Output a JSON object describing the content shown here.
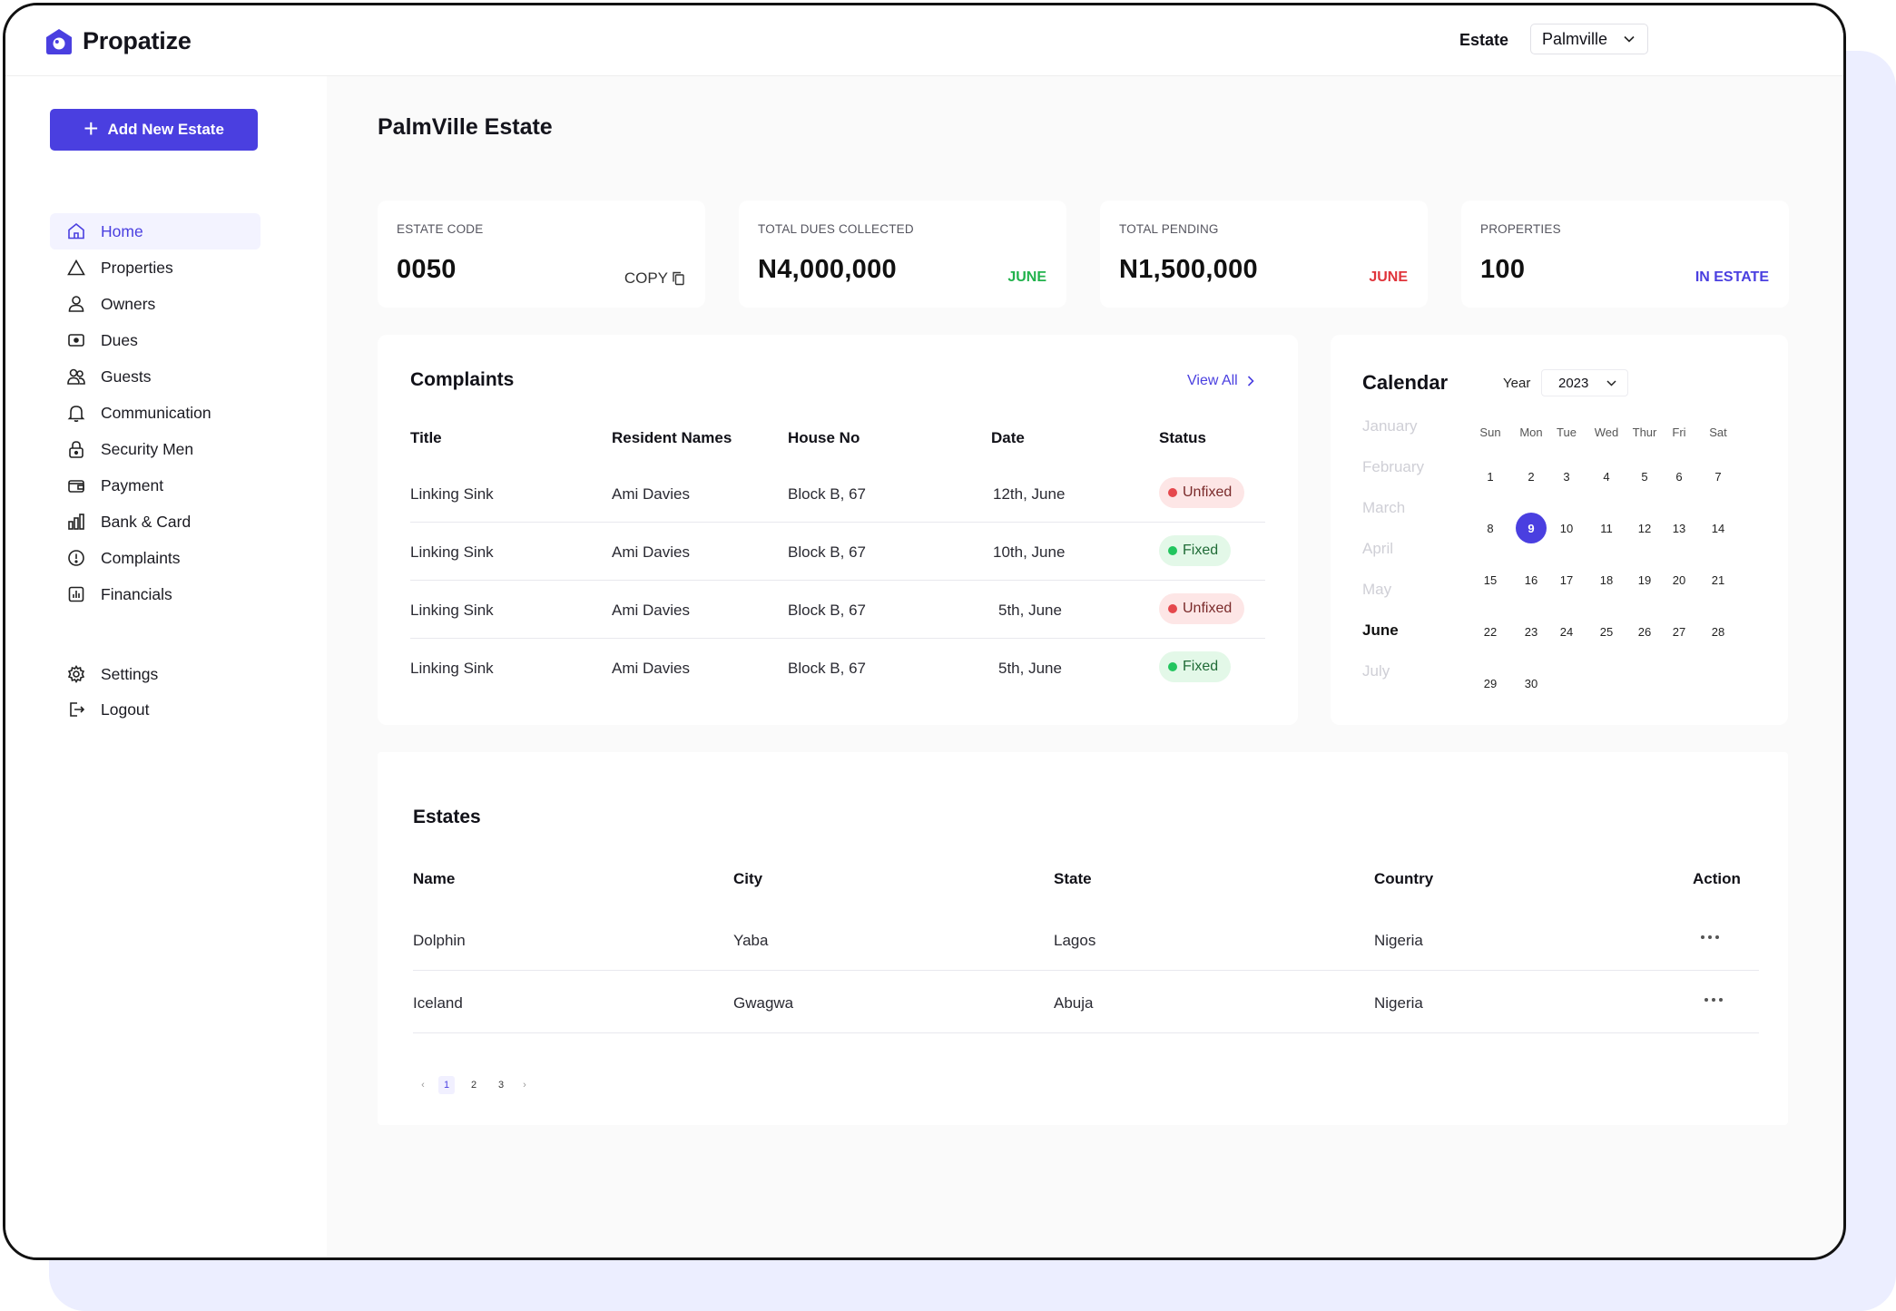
{
  "app": {
    "name": "Propatize"
  },
  "header": {
    "estate_label": "Estate",
    "estate_value": "Palmville"
  },
  "sidebar": {
    "add_button": "Add New Estate",
    "items": [
      {
        "label": "Home",
        "icon": "home-icon"
      },
      {
        "label": "Properties",
        "icon": "triangle-icon"
      },
      {
        "label": "Owners",
        "icon": "user-icon"
      },
      {
        "label": "Dues",
        "icon": "money-icon"
      },
      {
        "label": "Guests",
        "icon": "users-icon"
      },
      {
        "label": "Communication",
        "icon": "bell-icon"
      },
      {
        "label": "Security Men",
        "icon": "lock-icon"
      },
      {
        "label": "Payment",
        "icon": "wallet-icon"
      },
      {
        "label": "Bank & Card",
        "icon": "bank-icon"
      },
      {
        "label": "Complaints",
        "icon": "alert-icon"
      },
      {
        "label": "Financials",
        "icon": "chart-icon"
      }
    ],
    "bottom_items": [
      {
        "label": "Settings",
        "icon": "gear-icon"
      },
      {
        "label": "Logout",
        "icon": "logout-icon"
      }
    ]
  },
  "page": {
    "title": "PalmVille Estate"
  },
  "stats": [
    {
      "label": "ESTATE CODE",
      "value": "0050",
      "note": "COPY"
    },
    {
      "label": "TOTAL DUES COLLECTED",
      "value": "N4,000,000",
      "note": "JUNE",
      "note_color": "#22b24c"
    },
    {
      "label": "TOTAL PENDING",
      "value": "N1,500,000",
      "note": "JUNE",
      "note_color": "#e0343b"
    },
    {
      "label": "PROPERTIES",
      "value": "100",
      "note": "IN ESTATE",
      "note_color": "#4a3fe0"
    }
  ],
  "complaints": {
    "title": "Complaints",
    "view_all": "View All",
    "headers": [
      "Title",
      "Resident Names",
      "House No",
      "Date",
      "Status"
    ],
    "rows": [
      {
        "title": "Linking Sink",
        "resident": "Ami Davies",
        "house": "Block B, 67",
        "date": "12th, June",
        "status": "Unfixed"
      },
      {
        "title": "Linking Sink",
        "resident": "Ami Davies",
        "house": "Block B, 67",
        "date": "10th, June",
        "status": "Fixed"
      },
      {
        "title": "Linking Sink",
        "resident": "Ami Davies",
        "house": "Block B, 67",
        "date": "5th, June",
        "status": "Unfixed"
      },
      {
        "title": "Linking Sink",
        "resident": "Ami Davies",
        "house": "Block B, 67",
        "date": "5th, June",
        "status": "Fixed"
      }
    ]
  },
  "calendar": {
    "title": "Calendar",
    "year_label": "Year",
    "year": "2023",
    "months": [
      "January",
      "February",
      "March",
      "April",
      "May",
      "June",
      "July"
    ],
    "current_month": "June",
    "weekdays": [
      "Sun",
      "Mon",
      "Tue",
      "Wed",
      "Thur",
      "Fri",
      "Sat"
    ],
    "weeks": [
      [
        "1",
        "2",
        "3",
        "4",
        "5",
        "6",
        "7"
      ],
      [
        "8",
        "9",
        "10",
        "11",
        "12",
        "13",
        "14"
      ],
      [
        "15",
        "16",
        "17",
        "18",
        "19",
        "20",
        "21"
      ],
      [
        "22",
        "23",
        "24",
        "25",
        "26",
        "27",
        "28"
      ],
      [
        "29",
        "30",
        "",
        "",
        "",
        "",
        ""
      ]
    ],
    "selected_day": "9"
  },
  "estates": {
    "title": "Estates",
    "headers": [
      "Name",
      "City",
      "State",
      "Country",
      "Action"
    ],
    "rows": [
      {
        "name": "Dolphin",
        "city": "Yaba",
        "state": "Lagos",
        "country": "Nigeria"
      },
      {
        "name": "Iceland",
        "city": "Gwagwa",
        "state": "Abuja",
        "country": "Nigeria"
      }
    ],
    "pagination": {
      "prev": "‹",
      "pages": [
        "1",
        "2",
        "3"
      ],
      "current": "1",
      "next": "›"
    }
  }
}
